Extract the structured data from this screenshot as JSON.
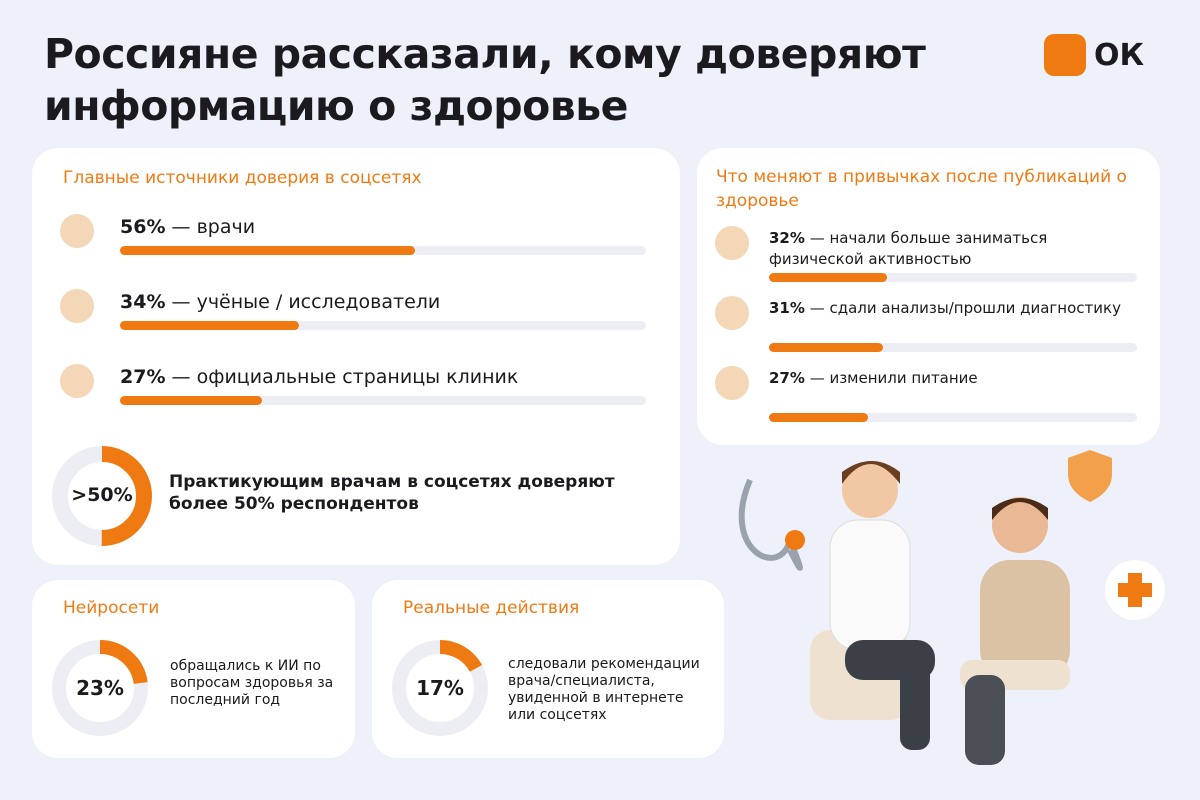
{
  "header": {
    "title": "Россияне рассказали, кому доверяют информацию о здоровье",
    "logo": "ОК"
  },
  "trust": {
    "title": "Главные источники доверия в соцсетях",
    "items": [
      {
        "value": 56,
        "value_label": "56%",
        "text": "— врачи"
      },
      {
        "value": 34,
        "value_label": "34%",
        "text": "— учёные / исследователи"
      },
      {
        "value": 27,
        "value_label": "27%",
        "text": "— официальные страницы клиник"
      }
    ],
    "donut": {
      "value": 50,
      "value_label": ">50%",
      "text": "Практикующим врачам в соцсетях доверяют более 50% респондентов"
    }
  },
  "habits": {
    "title": "Что меняют в привычках после публикаций о здоровье",
    "items": [
      {
        "value": 32,
        "value_label": "32%",
        "text": "— начали больше заниматься физической активностью"
      },
      {
        "value": 31,
        "value_label": "31%",
        "text": "— сдали анализы/прошли диагностику"
      },
      {
        "value": 27,
        "value_label": "27%",
        "text": "— изменили питание"
      }
    ]
  },
  "ai": {
    "title": "Нейросети",
    "value": 23,
    "value_label": "23%",
    "text": "обращались к ИИ по вопросам здоровья за последний год"
  },
  "actions": {
    "title": "Реальные действия",
    "value": 17,
    "value_label": "17%",
    "text": "следовали рекомендации врача/специалиста, увиденной в интернете или соцсетях"
  }
}
